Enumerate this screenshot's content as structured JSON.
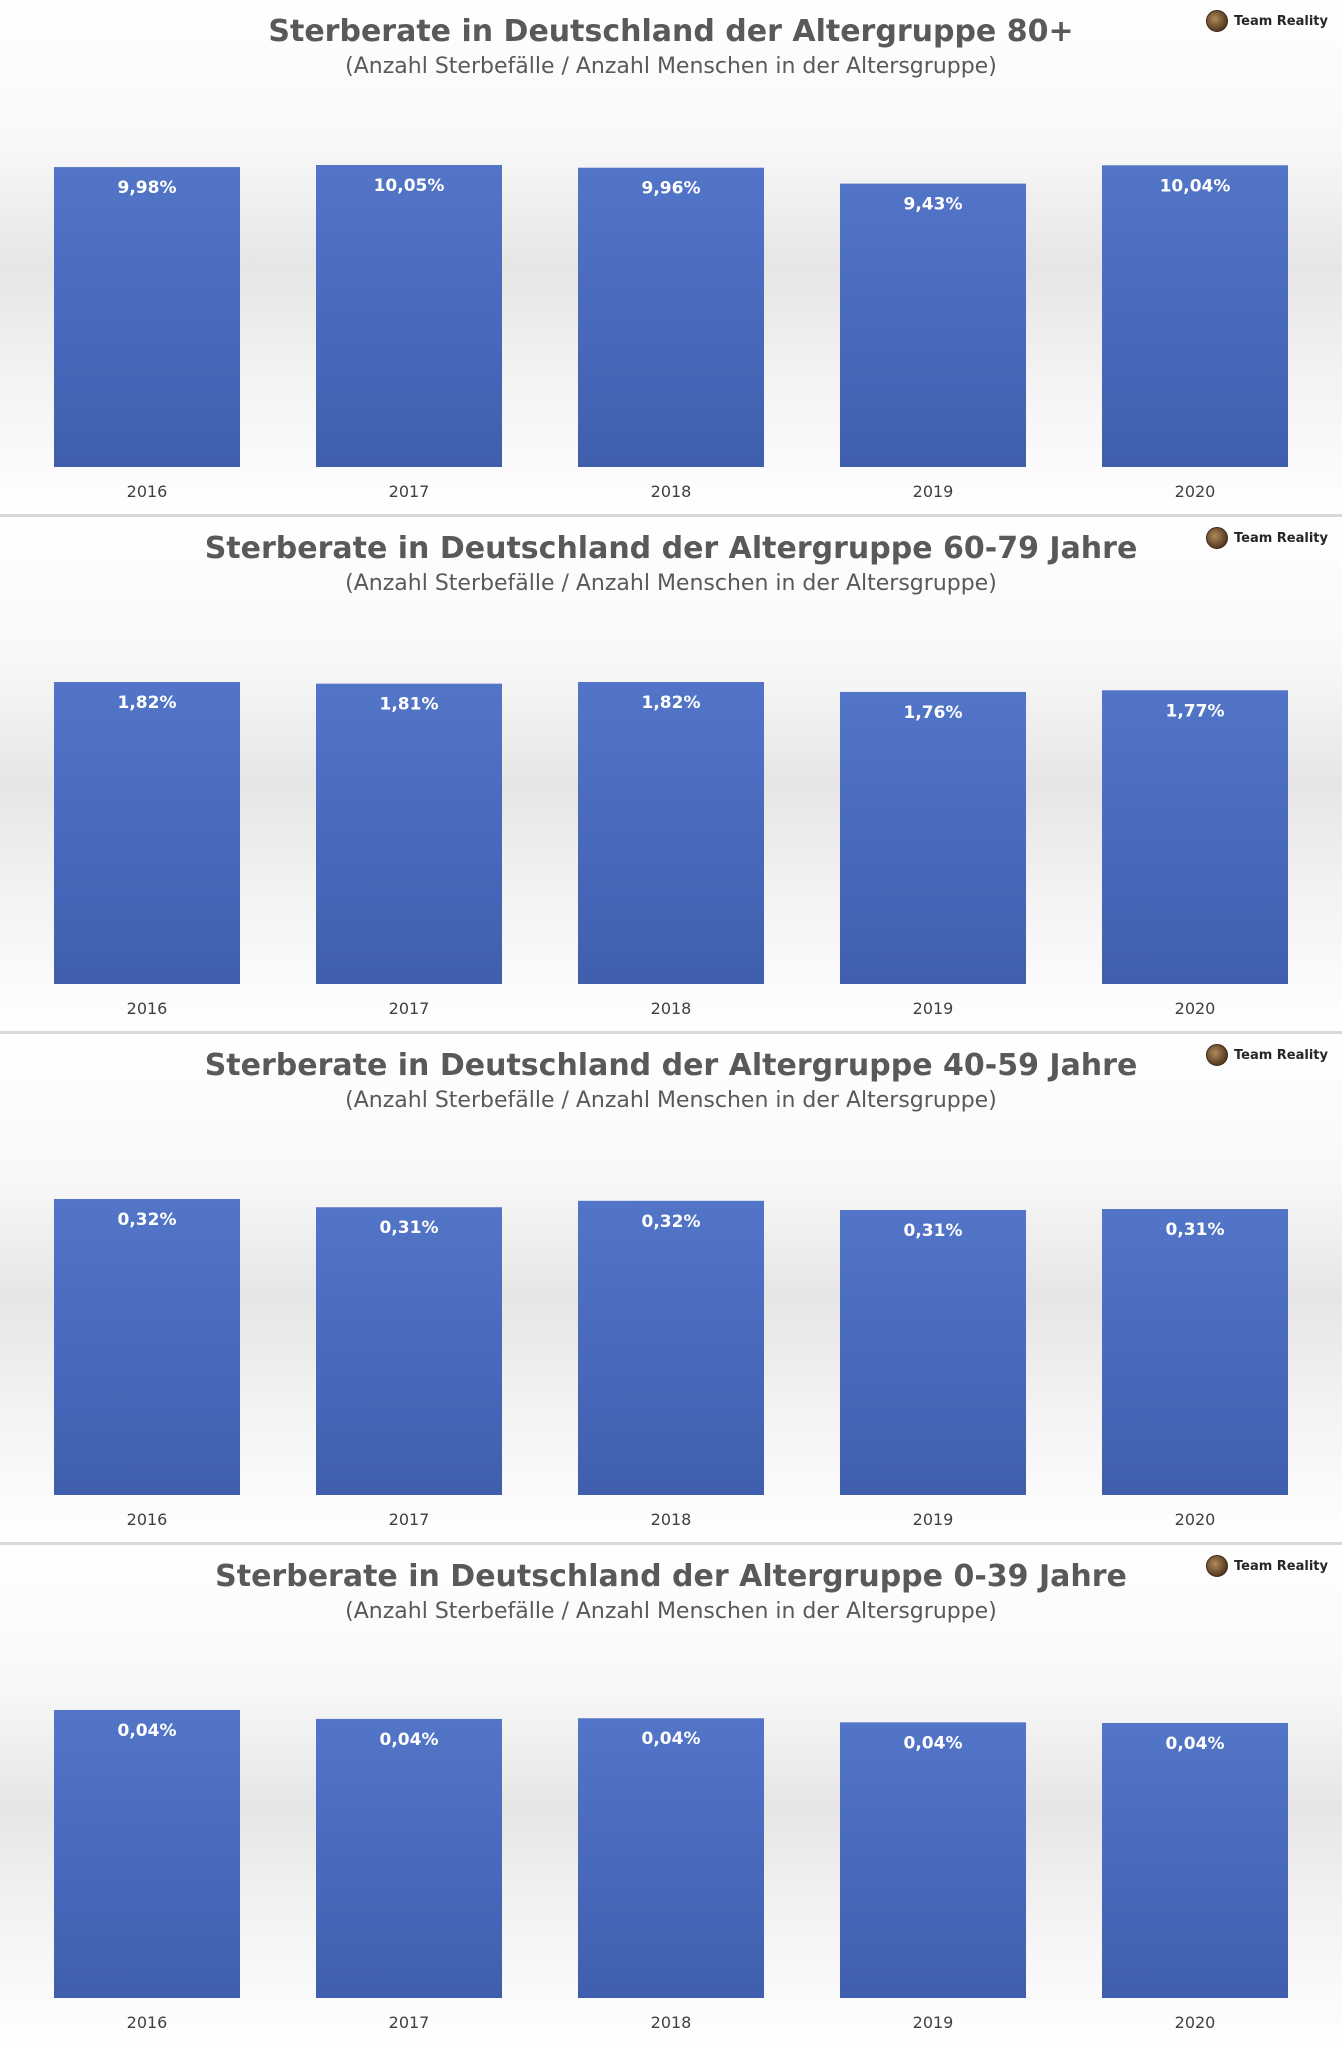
{
  "badge_text": "Team Reality",
  "colors": {
    "bar": "#4a6cc0",
    "bar_top": "#5375c8",
    "bar_bottom": "#3f5fae",
    "text": "#595959"
  },
  "chart_data": [
    {
      "type": "bar",
      "title": "Sterberate in Deutschland der Altergruppe 80+",
      "subtitle": "(Anzahl Sterbefälle / Anzahl Menschen in der Altersgruppe)",
      "categories": [
        "2016",
        "2017",
        "2018",
        "2019",
        "2020"
      ],
      "values": [
        9.98,
        10.05,
        9.96,
        9.43,
        10.04
      ],
      "labels": [
        "9,98%",
        "10,05%",
        "9,96%",
        "9,43%",
        "10,04%"
      ],
      "ylim": [
        0,
        10.05
      ],
      "grid": false,
      "legend": "none"
    },
    {
      "type": "bar",
      "title": "Sterberate in Deutschland der Altergruppe 60-79 Jahre",
      "subtitle": "(Anzahl Sterbefälle / Anzahl Menschen in der Altersgruppe)",
      "categories": [
        "2016",
        "2017",
        "2018",
        "2019",
        "2020"
      ],
      "values": [
        1.82,
        1.81,
        1.82,
        1.76,
        1.77
      ],
      "labels": [
        "1,82%",
        "1,81%",
        "1,82%",
        "1,76%",
        "1,77%"
      ],
      "ylim": [
        0,
        1.82
      ],
      "grid": false,
      "legend": "none"
    },
    {
      "type": "bar",
      "title": "Sterberate in Deutschland der Altergruppe 40-59 Jahre",
      "subtitle": "(Anzahl Sterbefälle / Anzahl Menschen in der Altersgruppe)",
      "categories": [
        "2016",
        "2017",
        "2018",
        "2019",
        "2020"
      ],
      "values": [
        0.324,
        0.315,
        0.322,
        0.312,
        0.313
      ],
      "labels": [
        "0,32%",
        "0,31%",
        "0,32%",
        "0,31%",
        "0,31%"
      ],
      "ylim": [
        0,
        0.324
      ],
      "grid": false,
      "legend": "none"
    },
    {
      "type": "bar",
      "title": "Sterberate in Deutschland der Altergruppe 0-39 Jahre",
      "subtitle": "(Anzahl Sterbefälle / Anzahl Menschen in der Altersgruppe)",
      "categories": [
        "2016",
        "2017",
        "2018",
        "2019",
        "2020"
      ],
      "values": [
        0.042,
        0.0407,
        0.0408,
        0.0402,
        0.0401
      ],
      "labels": [
        "0,04%",
        "0,04%",
        "0,04%",
        "0,04%",
        "0,04%"
      ],
      "ylim": [
        0,
        0.042
      ],
      "grid": false,
      "legend": "none"
    }
  ]
}
